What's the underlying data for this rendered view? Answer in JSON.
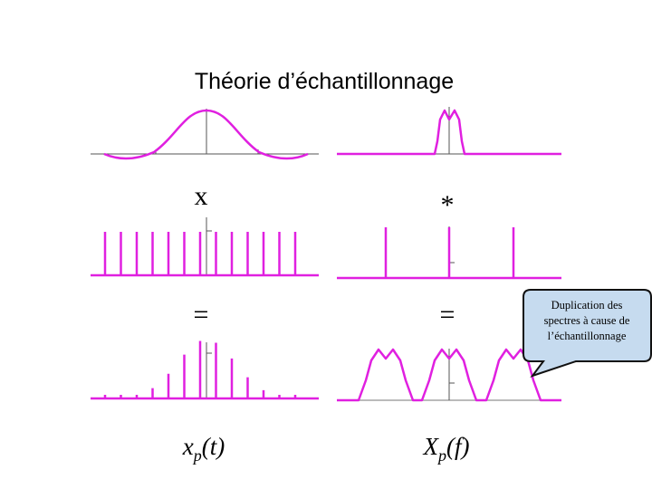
{
  "title": "Théorie d’échantillonnage",
  "operators": [
    "x",
    "*",
    "=",
    "="
  ],
  "labels": [
    {
      "main": "x",
      "sub": "p",
      "rest": "(t)"
    },
    {
      "main": "X",
      "sub": "p",
      "rest": "(f)"
    }
  ],
  "callout": [
    "Duplication des",
    "spectres à cause de",
    "l’échantillonnage"
  ]
}
